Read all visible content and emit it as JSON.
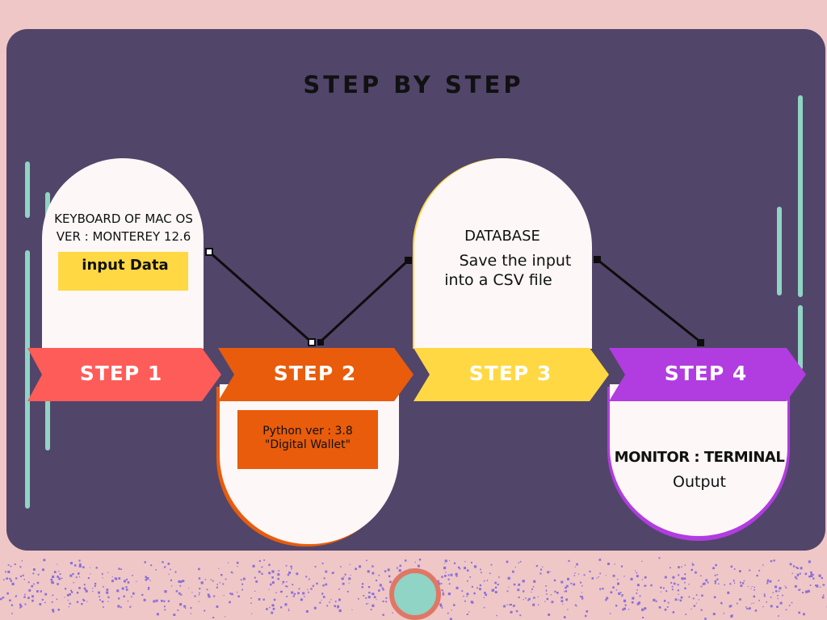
{
  "title": "STEP BY STEP",
  "colors": {
    "page_bg": "#efc7c7",
    "panel": "#52456a",
    "accent_mint": "#8fd4c4",
    "step1": "#fe5c58",
    "step2": "#e85c0c",
    "step3": "#ffd844",
    "step4": "#b13ce0",
    "speckle": "#8b6fd8"
  },
  "steps": [
    {
      "label": "STEP 1",
      "card_lines": [
        "KEYBOARD OF MAC OS",
        "VER : MONTEREY 12.6"
      ],
      "tag": "input Data"
    },
    {
      "label": "STEP 2",
      "tag_lines": [
        "Python ver : 3.8",
        "\"Digital Wallet\""
      ]
    },
    {
      "label": "STEP 3",
      "card_heading": "DATABASE",
      "card_lines": [
        "Save the input",
        "into a CSV file"
      ]
    },
    {
      "label": "STEP 4",
      "card_heading": "MONITOR : TERMINAL",
      "card_lines": [
        "Output"
      ]
    }
  ]
}
